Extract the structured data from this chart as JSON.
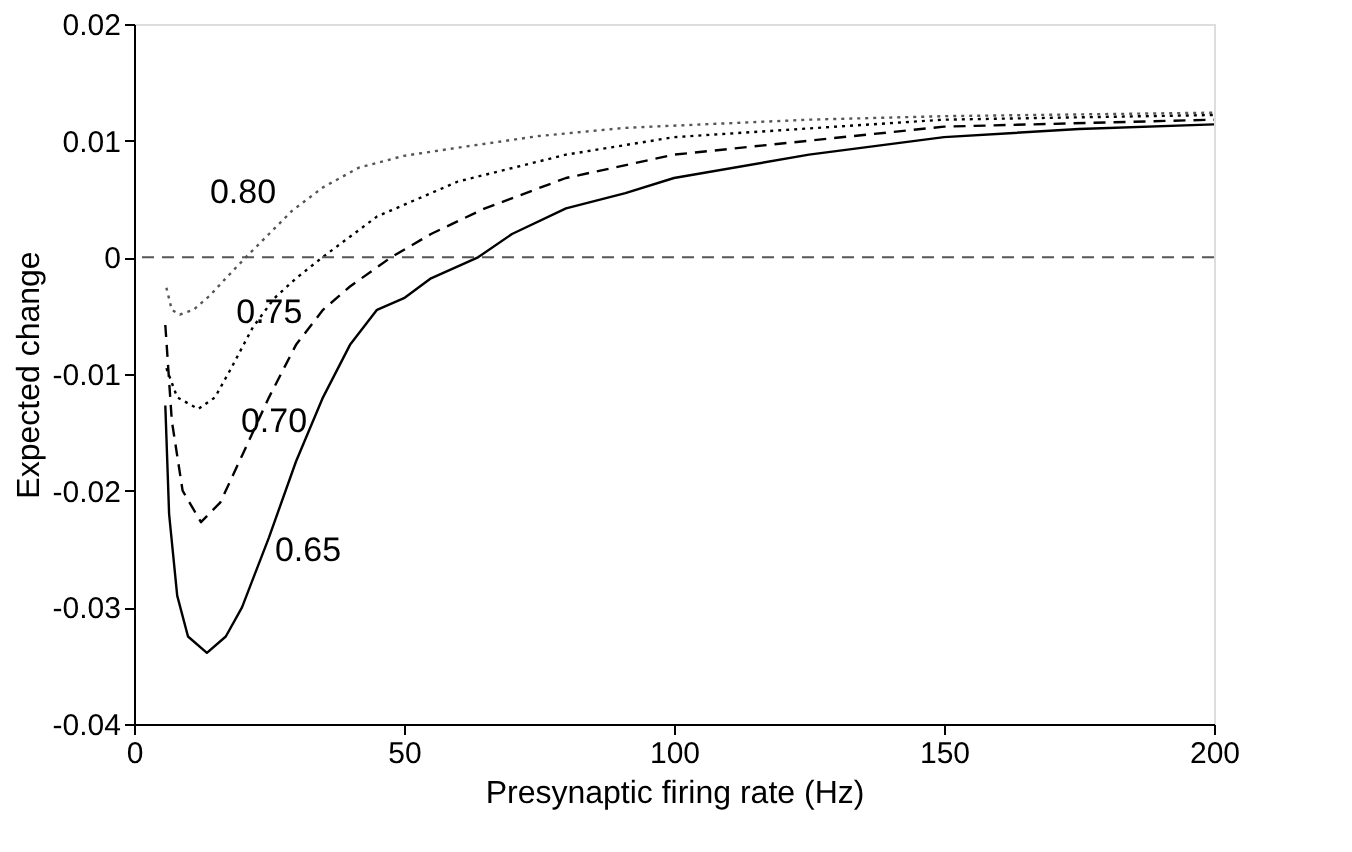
{
  "chart_data": {
    "type": "line",
    "xlabel": "Presynaptic firing rate (Hz)",
    "ylabel": "Expected change",
    "xlim": [
      0,
      200
    ],
    "xticks": [
      0,
      50,
      100,
      150,
      200
    ],
    "ylim": [
      -0.04,
      0.02
    ],
    "yticks": [
      -0.04,
      -0.03,
      -0.02,
      -0.01,
      0,
      0.01,
      0.02
    ],
    "grid": false,
    "series": [
      {
        "name": "0.65",
        "color": "#000000",
        "line_style": "solid",
        "x": [
          5.8,
          6.5,
          8,
          10,
          13.5,
          17,
          20,
          25,
          30,
          35,
          40,
          45,
          50,
          55,
          63.7,
          70,
          80,
          91,
          100,
          125,
          150,
          175,
          200
        ],
        "values": [
          -0.0127,
          -0.022,
          -0.029,
          -0.0325,
          -0.0339,
          -0.0325,
          -0.03,
          -0.024,
          -0.0175,
          -0.012,
          -0.0075,
          -0.0045,
          -0.0035,
          -0.0018,
          0,
          0.002,
          0.0042,
          0.0055,
          0.0068,
          0.0088,
          0.0103,
          0.011,
          0.0114
        ]
      },
      {
        "name": "0.70",
        "color": "#000000",
        "line_style": "dashed",
        "x": [
          5.8,
          7,
          9,
          12.4,
          16,
          20,
          25,
          30,
          35,
          40,
          47.6,
          55,
          65,
          80,
          100,
          150,
          200
        ],
        "values": [
          -0.0058,
          -0.014,
          -0.02,
          -0.0227,
          -0.021,
          -0.017,
          -0.012,
          -0.0075,
          -0.0045,
          -0.0025,
          0,
          0.002,
          0.0042,
          0.0068,
          0.0088,
          0.0112,
          0.0118
        ]
      },
      {
        "name": "0.75",
        "color": "#000000",
        "line_style": "dotted",
        "x": [
          6,
          8,
          11.9,
          15,
          18,
          22,
          26,
          30,
          34.9,
          45,
          60,
          80,
          100,
          150,
          200
        ],
        "values": [
          -0.0095,
          -0.012,
          -0.013,
          -0.012,
          -0.0095,
          -0.006,
          -0.0035,
          -0.0018,
          0,
          0.0035,
          0.0065,
          0.0088,
          0.0103,
          0.0118,
          0.0122
        ]
      },
      {
        "name": "0.80",
        "color": "#555555",
        "line_style": "dotted",
        "x": [
          6,
          7,
          8.5,
          11,
          14,
          17,
          20.7,
          25,
          29.3,
          35,
          41.7,
          50,
          60,
          75,
          91,
          125,
          150,
          200
        ],
        "values": [
          -0.0026,
          -0.0045,
          -0.0049,
          -0.0045,
          -0.0033,
          -0.0018,
          0,
          0.002,
          0.004,
          0.006,
          0.0077,
          0.0087,
          0.0094,
          0.0104,
          0.0111,
          0.0118,
          0.0121,
          0.0124
        ]
      }
    ],
    "ref_lines": [
      {
        "axis": "y",
        "value": 0,
        "color": "#555555",
        "line_style": "dashed"
      }
    ]
  }
}
